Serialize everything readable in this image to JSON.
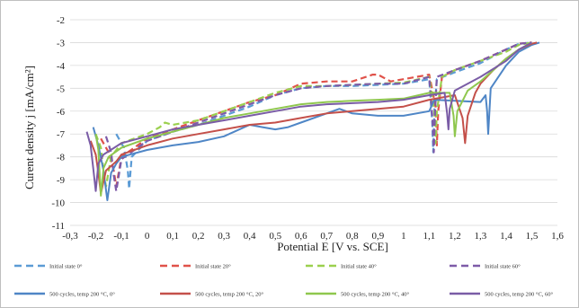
{
  "chart_data": {
    "type": "line",
    "title": "",
    "xlabel": "Potential E [V vs. SCE]",
    "ylabel": "Curent density j [mA/cm²]",
    "xlim": [
      -0.3,
      1.6
    ],
    "ylim": [
      -11,
      -2
    ],
    "x_ticks": [
      "-0,3",
      "-0,2",
      "-0,1",
      "0",
      "0,1",
      "0,2",
      "0,3",
      "0,4",
      "0,5",
      "0,6",
      "0,7",
      "0,8",
      "0,9",
      "1",
      "1,1",
      "1,2",
      "1,3",
      "1,4",
      "1,5",
      "1,6"
    ],
    "y_ticks": [
      "-2",
      "-3",
      "-4",
      "-5",
      "-6",
      "-7",
      "-8",
      "-9",
      "-10",
      "-11"
    ],
    "grid": "horizontal",
    "legend_position": "bottom",
    "series": [
      {
        "name": "Initial state 0°",
        "color": "#5b9bd5",
        "dash": true,
        "x": [
          -0.12,
          -0.09,
          -0.075,
          -0.07,
          -0.06,
          0.0,
          0.1,
          0.2,
          0.3,
          0.4,
          0.5,
          0.6,
          0.7,
          0.8,
          0.9,
          1.0,
          1.1,
          1.112,
          1.116,
          1.12,
          1.13,
          1.2,
          1.3,
          1.4,
          1.45,
          1.5
        ],
        "y": [
          -7.0,
          -7.6,
          -8.6,
          -9.4,
          -8.0,
          -7.3,
          -6.9,
          -6.6,
          -6.2,
          -5.8,
          -5.3,
          -5.0,
          -4.9,
          -4.9,
          -4.85,
          -4.8,
          -4.6,
          -6.5,
          -7.8,
          -6.0,
          -4.6,
          -4.3,
          -3.9,
          -3.3,
          -3.05,
          -3.0
        ]
      },
      {
        "name": "Initial state 20°",
        "color": "#e0524a",
        "dash": true,
        "x": [
          -0.18,
          -0.15,
          -0.13,
          -0.12,
          -0.1,
          0.0,
          0.1,
          0.2,
          0.3,
          0.4,
          0.5,
          0.6,
          0.7,
          0.8,
          0.88,
          0.9,
          0.95,
          1.0,
          1.1,
          1.125,
          1.13,
          1.135,
          1.15,
          1.2,
          1.3,
          1.4,
          1.45,
          1.5
        ],
        "y": [
          -7.2,
          -7.8,
          -8.6,
          -9.3,
          -8.0,
          -7.2,
          -6.8,
          -6.4,
          -6.0,
          -5.6,
          -5.3,
          -4.8,
          -4.7,
          -4.7,
          -4.4,
          -4.4,
          -4.7,
          -4.6,
          -4.4,
          -5.8,
          -7.5,
          -6.0,
          -4.5,
          -4.2,
          -3.8,
          -3.3,
          -3.05,
          -3.0
        ]
      },
      {
        "name": "Initial state 40°",
        "color": "#9bd04e",
        "dash": true,
        "x": [
          -0.2,
          -0.18,
          -0.17,
          -0.16,
          -0.14,
          -0.1,
          0.0,
          0.05,
          0.07,
          0.1,
          0.2,
          0.3,
          0.4,
          0.5,
          0.6,
          0.7,
          0.8,
          0.9,
          1.0,
          1.1,
          1.12,
          1.125,
          1.13,
          1.15,
          1.2,
          1.3,
          1.4,
          1.45,
          1.5
        ],
        "y": [
          -7.0,
          -7.6,
          -8.6,
          -9.3,
          -8.0,
          -7.4,
          -7.0,
          -6.7,
          -6.5,
          -6.6,
          -6.4,
          -6.0,
          -5.6,
          -5.2,
          -4.9,
          -4.9,
          -4.85,
          -4.8,
          -4.75,
          -4.5,
          -6.0,
          -7.4,
          -6.0,
          -4.5,
          -4.2,
          -3.8,
          -3.4,
          -3.1,
          -3.0
        ]
      },
      {
        "name": "Initial state 60°",
        "color": "#7e5ba8",
        "dash": true,
        "x": [
          -0.16,
          -0.14,
          -0.13,
          -0.12,
          -0.1,
          0.0,
          0.1,
          0.2,
          0.3,
          0.4,
          0.5,
          0.6,
          0.7,
          0.8,
          0.9,
          1.0,
          1.1,
          1.113,
          1.118,
          1.123,
          1.13,
          1.2,
          1.3,
          1.4,
          1.45,
          1.5
        ],
        "y": [
          -7.1,
          -7.8,
          -8.8,
          -9.5,
          -8.1,
          -7.3,
          -6.9,
          -6.5,
          -6.1,
          -5.7,
          -5.3,
          -5.0,
          -4.9,
          -4.85,
          -4.8,
          -4.8,
          -4.5,
          -6.4,
          -7.8,
          -6.0,
          -4.5,
          -4.2,
          -3.8,
          -3.3,
          -3.05,
          -3.0
        ]
      },
      {
        "name": "500 cycles, temp 200 °C, 0°",
        "color": "#4f86c6",
        "dash": false,
        "x": [
          -0.21,
          -0.19,
          -0.17,
          -0.155,
          -0.14,
          -0.12,
          -0.1,
          0.0,
          0.1,
          0.2,
          0.3,
          0.4,
          0.45,
          0.5,
          0.55,
          0.6,
          0.7,
          0.75,
          0.8,
          0.9,
          1.0,
          1.1,
          1.12,
          1.3,
          1.32,
          1.326,
          1.33,
          1.335,
          1.34,
          1.4,
          1.45,
          1.5,
          1.53
        ],
        "y": [
          -6.7,
          -7.5,
          -8.6,
          -9.9,
          -8.7,
          -8.3,
          -8.0,
          -7.7,
          -7.5,
          -7.35,
          -7.1,
          -6.6,
          -6.7,
          -6.8,
          -6.7,
          -6.5,
          -6.1,
          -5.9,
          -6.1,
          -6.2,
          -6.2,
          -6.0,
          -5.5,
          -5.6,
          -5.3,
          -6.0,
          -7.0,
          -6.0,
          -5.0,
          -4.0,
          -3.4,
          -3.1,
          -3.0
        ]
      },
      {
        "name": "500 cycles, temp 200 °C, 20°",
        "color": "#c4504a",
        "dash": false,
        "x": [
          -0.22,
          -0.2,
          -0.19,
          -0.18,
          -0.16,
          -0.12,
          -0.1,
          0.0,
          0.1,
          0.2,
          0.3,
          0.4,
          0.5,
          0.6,
          0.7,
          0.8,
          0.9,
          1.0,
          1.1,
          1.2,
          1.23,
          1.24,
          1.25,
          1.28,
          1.3,
          1.35,
          1.4,
          1.45,
          1.5,
          1.52
        ],
        "y": [
          -7.3,
          -7.9,
          -8.7,
          -9.6,
          -8.6,
          -8.2,
          -7.9,
          -7.5,
          -7.2,
          -7.0,
          -6.8,
          -6.6,
          -6.5,
          -6.3,
          -6.1,
          -6.0,
          -5.9,
          -5.8,
          -5.5,
          -5.3,
          -6.3,
          -7.4,
          -6.2,
          -5.2,
          -4.8,
          -4.2,
          -3.7,
          -3.3,
          -3.05,
          -3.0
        ]
      },
      {
        "name": "500 cycles, temp 200 °C, 40°",
        "color": "#8fc74e",
        "dash": false,
        "x": [
          -0.2,
          -0.19,
          -0.185,
          -0.18,
          -0.17,
          -0.15,
          -0.1,
          0.0,
          0.1,
          0.2,
          0.3,
          0.4,
          0.5,
          0.6,
          0.7,
          0.8,
          0.9,
          1.0,
          1.1,
          1.18,
          1.195,
          1.2,
          1.21,
          1.25,
          1.3,
          1.35,
          1.4,
          1.45,
          1.5
        ],
        "y": [
          -7.0,
          -7.7,
          -8.7,
          -9.7,
          -8.5,
          -8.0,
          -7.6,
          -7.2,
          -6.9,
          -6.6,
          -6.3,
          -6.1,
          -5.9,
          -5.7,
          -5.6,
          -5.55,
          -5.5,
          -5.45,
          -5.2,
          -5.2,
          -6.2,
          -7.1,
          -6.0,
          -5.1,
          -4.7,
          -4.2,
          -3.7,
          -3.3,
          -3.0
        ]
      },
      {
        "name": "500 cycles, temp 200 °C, 60°",
        "color": "#7a5ca6",
        "dash": false,
        "x": [
          -0.235,
          -0.22,
          -0.21,
          -0.2,
          -0.19,
          -0.17,
          -0.1,
          0.0,
          0.1,
          0.2,
          0.3,
          0.4,
          0.5,
          0.6,
          0.7,
          0.8,
          0.9,
          1.0,
          1.1,
          1.16,
          1.17,
          1.175,
          1.18,
          1.2,
          1.3,
          1.4,
          1.45,
          1.5
        ],
        "y": [
          -6.9,
          -7.5,
          -8.5,
          -9.5,
          -8.3,
          -7.9,
          -7.4,
          -7.1,
          -6.8,
          -6.6,
          -6.4,
          -6.2,
          -6.0,
          -5.8,
          -5.7,
          -5.65,
          -5.6,
          -5.5,
          -5.3,
          -5.2,
          -6.1,
          -6.8,
          -5.9,
          -5.1,
          -4.5,
          -3.8,
          -3.3,
          -3.0
        ]
      }
    ]
  }
}
